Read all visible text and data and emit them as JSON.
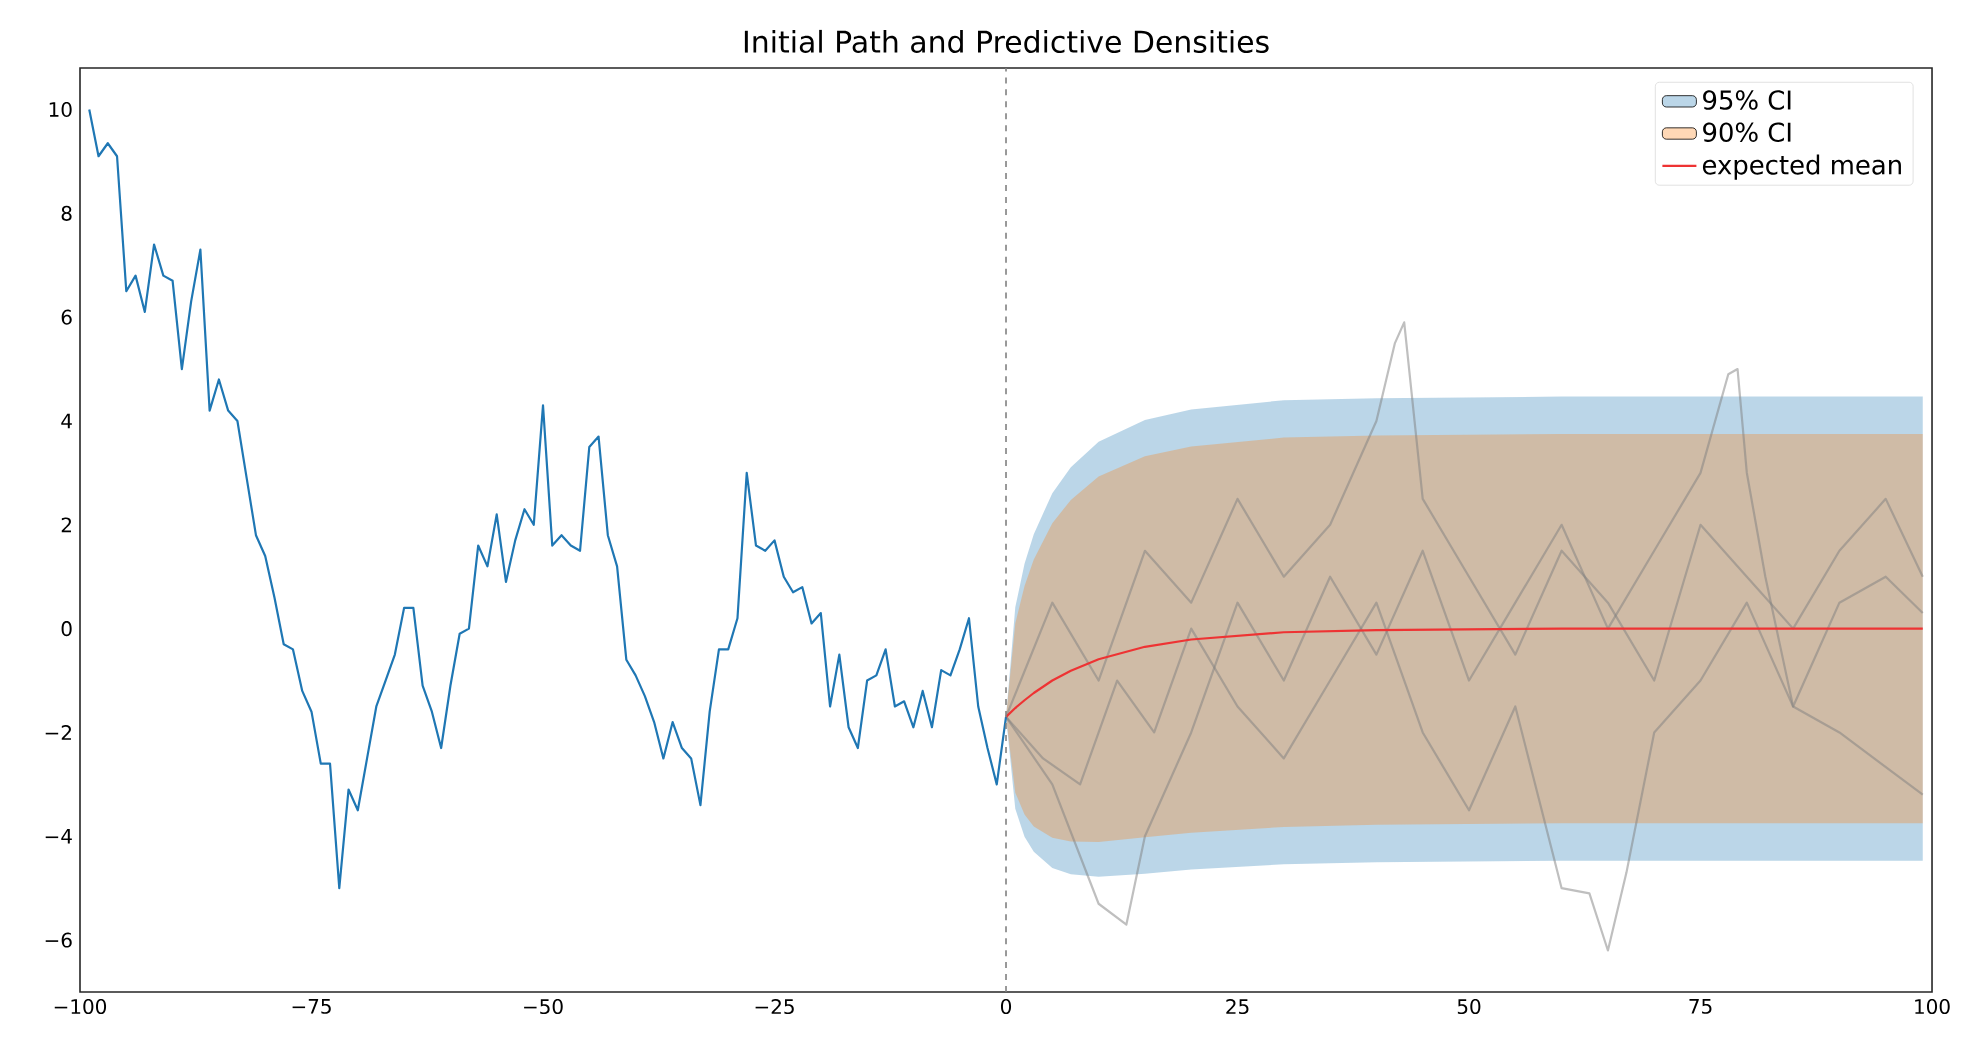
{
  "chart_data": {
    "type": "line",
    "title": "Initial Path and Predictive Densities",
    "xlim": [
      -100,
      100
    ],
    "ylim": [
      -7,
      10.8
    ],
    "xticks": [
      {
        "value": -100,
        "label": "−100"
      },
      {
        "value": -75,
        "label": "−75"
      },
      {
        "value": -50,
        "label": "−50"
      },
      {
        "value": -25,
        "label": "−25"
      },
      0,
      25,
      50,
      75,
      100
    ],
    "yticks": [
      {
        "value": -6,
        "label": "−6"
      },
      {
        "value": -4,
        "label": "−4"
      },
      {
        "value": -2,
        "label": "−2"
      },
      0,
      2,
      4,
      6,
      8,
      10
    ],
    "grid": false,
    "legend": "top right",
    "ref_lines": [
      {
        "axis": "x",
        "value": 0,
        "color": "#808080",
        "line_style": "dashed"
      }
    ],
    "series": [
      {
        "name": "95% CI",
        "color": "#1f77b4",
        "x": [
          0,
          1,
          2,
          3,
          5,
          7,
          10,
          15,
          20,
          30,
          40,
          60,
          99
        ],
        "values": [
          null,
          null,
          null,
          null,
          null,
          null,
          null,
          null,
          null,
          null,
          null,
          null,
          null
        ],
        "lower": [
          -1.7,
          -3.47,
          -4.01,
          -4.3,
          -4.61,
          -4.73,
          -4.78,
          -4.72,
          -4.64,
          -4.54,
          -4.5,
          -4.47,
          -4.47
        ],
        "upper": [
          -1.7,
          0.41,
          1.25,
          1.82,
          2.61,
          3.11,
          3.6,
          4.02,
          4.22,
          4.4,
          4.44,
          4.47,
          4.47
        ]
      },
      {
        "name": "90% CI",
        "color": "#ff7f0e",
        "x": [
          0,
          1,
          2,
          3,
          5,
          7,
          10,
          15,
          20,
          30,
          40,
          60,
          99
        ],
        "values": [
          null,
          null,
          null,
          null,
          null,
          null,
          null,
          null,
          null,
          null,
          null,
          null,
          null
        ],
        "lower": [
          -1.7,
          -3.16,
          -3.58,
          -3.81,
          -4.03,
          -4.1,
          -4.11,
          -4.02,
          -3.93,
          -3.82,
          -3.78,
          -3.75,
          -3.75
        ],
        "upper": [
          -1.7,
          0.1,
          0.82,
          1.33,
          2.03,
          2.48,
          2.93,
          3.32,
          3.51,
          3.68,
          3.72,
          3.75,
          3.75
        ]
      },
      {
        "type": "line",
        "color": "#808080",
        "x": [
          0,
          5,
          10,
          15,
          20,
          25,
          30,
          35,
          40,
          42,
          43,
          45,
          50,
          55,
          60,
          65,
          70,
          75,
          80,
          85,
          90,
          95,
          99
        ],
        "values": [
          -1.7,
          0.5,
          -1,
          1.5,
          0.5,
          2.5,
          1.0,
          2.0,
          4.0,
          5.5,
          5.9,
          2.5,
          1.0,
          -0.5,
          1.5,
          0.5,
          -1.0,
          2.0,
          1.0,
          0,
          1.5,
          2.5,
          1.0
        ]
      },
      {
        "type": "line",
        "color": "#808080",
        "x": [
          0,
          4,
          8,
          12,
          16,
          20,
          25,
          30,
          35,
          40,
          45,
          50,
          55,
          60,
          63,
          65,
          67,
          70,
          75,
          80,
          85,
          90,
          99
        ],
        "values": [
          -1.7,
          -2.5,
          -3.0,
          -1.0,
          -2.0,
          0,
          -1.5,
          -2.5,
          -1.0,
          0.5,
          -2.0,
          -3.5,
          -1.5,
          -5.0,
          -5.1,
          -6.2,
          -4.7,
          -2.0,
          -1.0,
          0.5,
          -1.5,
          -2.0,
          -3.2
        ]
      },
      {
        "type": "line",
        "color": "#808080",
        "x": [
          0,
          5,
          10,
          13,
          15,
          20,
          25,
          30,
          35,
          40,
          45,
          50,
          55,
          60,
          65,
          70,
          75,
          78,
          79,
          80,
          82,
          85,
          90,
          95,
          99
        ],
        "values": [
          -1.7,
          -3.0,
          -5.3,
          -5.7,
          -4.0,
          -2.0,
          0.5,
          -1.0,
          1.0,
          -0.5,
          1.5,
          -1.0,
          0.5,
          2.0,
          0,
          1.5,
          3.0,
          4.9,
          5.0,
          3.0,
          1.0,
          -1.5,
          0.5,
          1.0,
          0.3
        ]
      },
      {
        "type": "line",
        "color": "#1f77b4",
        "x": [
          -99,
          -98,
          -97,
          -96,
          -95,
          -94,
          -93,
          -92,
          -91,
          -90,
          -89,
          -88,
          -87,
          -86,
          -85,
          -84,
          -83,
          -82,
          -81,
          -80,
          -79,
          -78,
          -77,
          -76,
          -75,
          -74,
          -73,
          -72,
          -71,
          -70,
          -69,
          -68,
          -67,
          -66,
          -65,
          -64,
          -63,
          -62,
          -61,
          -60,
          -59,
          -58,
          -57,
          -56,
          -55,
          -54,
          -53,
          -52,
          -51,
          -50,
          -49,
          -48,
          -47,
          -46,
          -45,
          -44,
          -43,
          -42,
          -41,
          -40,
          -39,
          -38,
          -37,
          -36,
          -35,
          -34,
          -33,
          -32,
          -31,
          -30,
          -29,
          -28,
          -27,
          -26,
          -25,
          -24,
          -23,
          -22,
          -21,
          -20,
          -19,
          -18,
          -17,
          -16,
          -15,
          -14,
          -13,
          -12,
          -11,
          -10,
          -9,
          -8,
          -7,
          -6,
          -5,
          -4,
          -3,
          -2,
          -1,
          0
        ],
        "values": [
          10.0,
          9.1,
          9.35,
          9.1,
          6.5,
          6.8,
          6.1,
          7.4,
          6.8,
          6.7,
          5.0,
          6.3,
          7.3,
          4.2,
          4.8,
          4.2,
          4.0,
          2.9,
          1.8,
          1.4,
          0.6,
          -0.3,
          -0.4,
          -1.2,
          -1.6,
          -2.6,
          -2.6,
          -5.0,
          -3.1,
          -3.5,
          -2.5,
          -1.5,
          -1.0,
          -0.5,
          0.4,
          0.4,
          -1.1,
          -1.6,
          -2.3,
          -1.1,
          -0.1,
          0.0,
          1.6,
          1.2,
          2.2,
          0.9,
          1.7,
          2.3,
          2.0,
          4.3,
          1.6,
          1.8,
          1.6,
          1.5,
          3.5,
          3.7,
          1.8,
          1.2,
          -0.6,
          -0.9,
          -1.3,
          -1.8,
          -2.5,
          -1.8,
          -2.3,
          -2.5,
          -3.4,
          -1.6,
          -0.4,
          -0.4,
          0.2,
          3.0,
          1.6,
          1.5,
          1.7,
          1.0,
          0.7,
          0.8,
          0.1,
          0.3,
          -1.5,
          -0.5,
          -1.9,
          -2.3,
          -1.0,
          -0.9,
          -0.4,
          -1.5,
          -1.4,
          -1.9,
          -1.2,
          -1.9,
          -0.8,
          -0.9,
          -0.4,
          0.2,
          -1.5,
          -2.3,
          -3.0,
          -1.7
        ]
      },
      {
        "name": "expected mean",
        "type": "line",
        "color": "#ee3333",
        "x": [
          0,
          1,
          2,
          3,
          5,
          7,
          10,
          15,
          20,
          30,
          40,
          60,
          99
        ],
        "values": [
          -1.7,
          -1.53,
          -1.38,
          -1.24,
          -1.0,
          -0.81,
          -0.59,
          -0.35,
          -0.21,
          -0.07,
          -0.03,
          0,
          0
        ]
      }
    ]
  }
}
